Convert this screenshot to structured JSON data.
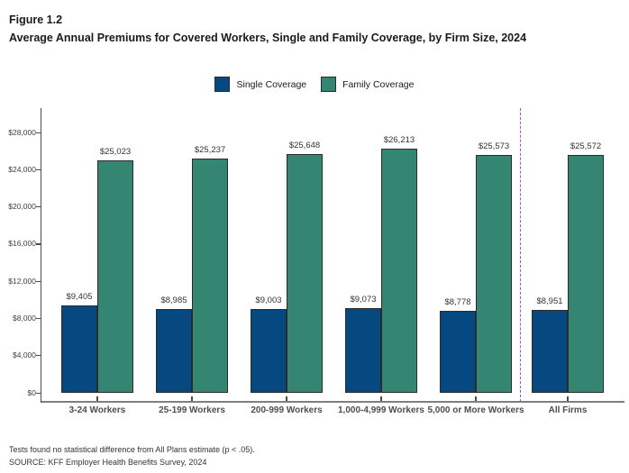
{
  "header": {
    "figure_label": "Figure 1.2",
    "title": "Average Annual Premiums for Covered Workers, Single and Family Coverage, by Firm Size, 2024"
  },
  "legend": {
    "items": [
      {
        "label": "Single Coverage",
        "color": "#054980"
      },
      {
        "label": "Family Coverage",
        "color": "#348673"
      }
    ]
  },
  "chart_data": {
    "type": "bar",
    "title": "Average Annual Premiums for Covered Workers, Single and Family Coverage, by Firm Size, 2024",
    "categories": [
      "3-24 Workers",
      "25-199 Workers",
      "200-999 Workers",
      "1,000-4,999 Workers",
      "5,000 or More Workers",
      "All Firms"
    ],
    "series": [
      {
        "name": "Single Coverage",
        "color": "#054980",
        "values": [
          9405,
          8985,
          9003,
          9073,
          8778,
          8951
        ]
      },
      {
        "name": "Family Coverage",
        "color": "#348673",
        "values": [
          25023,
          25237,
          25648,
          26213,
          25573,
          25572
        ]
      }
    ],
    "value_label_prefix": "$",
    "xlabel": "",
    "ylabel": "",
    "ylim": [
      0,
      28000
    ],
    "ytick_step": 4000,
    "ytick_labels": [
      "$0",
      "$4,000",
      "$8,000",
      "$12,000",
      "$16,000",
      "$20,000",
      "$24,000",
      "$28,000"
    ],
    "grid": false,
    "legend_position": "top",
    "separator": {
      "after_category_index": 4,
      "style": "dashed",
      "color": "#a352b0"
    }
  },
  "footnotes": {
    "note": "Tests found no statistical difference from All Plans estimate (p < .05).",
    "source": "SOURCE: KFF Employer Health Benefits Survey, 2024"
  }
}
